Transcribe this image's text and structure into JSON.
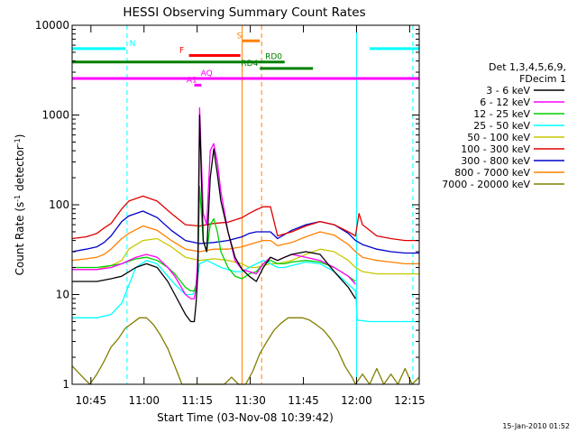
{
  "chart_data": {
    "type": "line",
    "title": "HESSI Observing Summary Count Rates",
    "xlabel": "Start Time (03-Nov-08 10:39:42)",
    "ylabel_main": "Count Rate (s",
    "ylabel_sup1": "-1",
    "ylabel_mid": " detector",
    "ylabel_sup2": "-1",
    "ylabel_end": ")",
    "x_unit": "minutes after 10:39:42",
    "xlim": [
      0,
      98
    ],
    "ylim": [
      1,
      10000
    ],
    "y_scale": "log",
    "x_ticks": [
      {
        "x": 5.3,
        "label": "10:45"
      },
      {
        "x": 20.3,
        "label": "11:00"
      },
      {
        "x": 35.3,
        "label": "11:15"
      },
      {
        "x": 50.3,
        "label": "11:30"
      },
      {
        "x": 65.3,
        "label": "11:45"
      },
      {
        "x": 80.3,
        "label": "12:00"
      },
      {
        "x": 95.3,
        "label": "12:15"
      }
    ],
    "y_ticks": [
      {
        "y": 1,
        "label": "1"
      },
      {
        "y": 10,
        "label": "10"
      },
      {
        "y": 100,
        "label": "100"
      },
      {
        "y": 1000,
        "label": "1000"
      },
      {
        "y": 10000,
        "label": "10000"
      }
    ],
    "legend": {
      "placement": "right",
      "header1": "Det 1,3,4,5,6,9,",
      "header2": "FDecim 1"
    },
    "series": [
      {
        "name": "3 - 6 keV",
        "color": "#000000",
        "x": [
          0,
          4,
          7,
          11,
          14,
          18,
          21,
          24,
          27,
          29,
          32,
          33.5,
          34.5,
          35,
          35.5,
          36,
          37,
          38,
          39,
          40,
          41,
          42,
          44,
          46,
          48,
          50,
          52,
          54,
          56,
          58,
          60,
          62,
          66,
          70,
          74,
          78,
          80
        ],
        "y": [
          14,
          14,
          14,
          15,
          16,
          20,
          22,
          20,
          14,
          10,
          6,
          5,
          5,
          8,
          18,
          1000,
          40,
          30,
          200,
          420,
          220,
          110,
          50,
          26,
          19,
          16,
          14,
          20,
          26,
          24,
          26,
          28,
          30,
          28,
          18,
          12,
          9
        ]
      },
      {
        "name": "6 - 12 keV",
        "color": "#ff00ff",
        "x": [
          0,
          4,
          7,
          11,
          14,
          18,
          21,
          24,
          27,
          29,
          32,
          33.5,
          34.5,
          35,
          35.5,
          36,
          37,
          38,
          39,
          40,
          41,
          42,
          44,
          46,
          48,
          50,
          52,
          54,
          56,
          58,
          60,
          62,
          66,
          70,
          74,
          78,
          80
        ],
        "y": [
          19,
          19,
          19,
          20,
          22,
          26,
          28,
          26,
          20,
          16,
          10,
          9,
          9,
          12,
          28,
          1200,
          80,
          60,
          400,
          480,
          300,
          140,
          50,
          24,
          19,
          18,
          17,
          22,
          26,
          24,
          26,
          28,
          26,
          24,
          20,
          16,
          13
        ]
      },
      {
        "name": "12 - 25 keV",
        "color": "#00d000",
        "x": [
          0,
          4,
          7,
          11,
          14,
          18,
          21,
          24,
          27,
          29,
          32,
          33.5,
          34.5,
          35,
          35.5,
          36,
          37,
          38,
          39,
          40,
          41,
          42,
          44,
          46,
          48,
          50,
          52,
          54,
          56,
          58,
          60,
          62,
          66,
          70,
          74,
          78,
          80
        ],
        "y": [
          20,
          20,
          20,
          21,
          22,
          25,
          26,
          24,
          20,
          17,
          12,
          11,
          11,
          13,
          22,
          160,
          40,
          30,
          60,
          70,
          50,
          30,
          20,
          16,
          15,
          17,
          18,
          22,
          24,
          22,
          22,
          23,
          24,
          23,
          20,
          16,
          14
        ]
      },
      {
        "name": "25 - 50 keV",
        "color": "#00ffff",
        "x": [
          0,
          4,
          7,
          11,
          14,
          18,
          21,
          24,
          27,
          29,
          32,
          34,
          35,
          36,
          38,
          40,
          42,
          44,
          46,
          48,
          50,
          52,
          54,
          56,
          58,
          60,
          62,
          66,
          70,
          74,
          78,
          80,
          80.5,
          84,
          88,
          92,
          96,
          98
        ],
        "y": [
          5.5,
          5.5,
          5.5,
          6,
          8,
          20,
          24,
          22,
          16,
          13,
          10,
          10,
          12,
          22,
          24,
          22,
          20,
          19,
          18,
          18,
          20,
          22,
          24,
          22,
          20,
          20,
          21,
          23,
          22,
          18,
          13,
          11,
          5.2,
          5,
          5,
          5,
          5,
          5
        ]
      },
      {
        "name": "50 - 100 keV",
        "color": "#c8c800",
        "x": [
          0,
          4,
          7,
          11,
          14,
          16,
          20,
          24,
          28,
          32,
          36,
          40,
          44,
          48,
          50,
          52,
          54,
          56,
          58,
          62,
          66,
          70,
          74,
          78,
          80,
          82,
          86,
          90,
          94,
          98
        ],
        "y": [
          19,
          19,
          19,
          21,
          24,
          32,
          40,
          42,
          34,
          26,
          24,
          25,
          24,
          22,
          20,
          20,
          21,
          22,
          22,
          24,
          28,
          32,
          30,
          24,
          20,
          18,
          17,
          17,
          17,
          17
        ]
      },
      {
        "name": "100 - 300 keV",
        "color": "#e00000",
        "x": [
          0,
          4,
          7,
          9,
          11,
          14,
          16,
          20,
          24,
          28,
          32,
          36,
          40,
          44,
          48,
          50,
          52,
          54,
          56,
          58,
          62,
          66,
          70,
          74,
          78,
          80,
          81,
          82,
          86,
          90,
          94,
          98
        ],
        "y": [
          42,
          44,
          48,
          55,
          62,
          90,
          110,
          125,
          110,
          80,
          60,
          58,
          62,
          64,
          72,
          80,
          88,
          95,
          95,
          45,
          50,
          58,
          65,
          60,
          50,
          45,
          80,
          60,
          45,
          42,
          40,
          40
        ]
      },
      {
        "name": "300 - 800 keV",
        "color": "#0000cc",
        "x": [
          0,
          4,
          7,
          9,
          11,
          14,
          16,
          20,
          24,
          28,
          32,
          36,
          40,
          44,
          48,
          50,
          52,
          54,
          56,
          58,
          62,
          66,
          70,
          74,
          78,
          80,
          82,
          86,
          90,
          94,
          98
        ],
        "y": [
          30,
          32,
          34,
          38,
          45,
          65,
          75,
          85,
          72,
          52,
          40,
          37,
          38,
          40,
          44,
          48,
          50,
          50,
          50,
          42,
          52,
          60,
          65,
          60,
          48,
          40,
          36,
          32,
          30,
          29,
          29
        ]
      },
      {
        "name": "800 - 7000 keV",
        "color": "#ff8000",
        "x": [
          0,
          4,
          7,
          9,
          11,
          14,
          16,
          20,
          24,
          28,
          32,
          36,
          40,
          44,
          48,
          50,
          52,
          54,
          56,
          58,
          62,
          66,
          70,
          74,
          78,
          80,
          82,
          86,
          90,
          94,
          98
        ],
        "y": [
          24,
          25,
          26,
          28,
          32,
          42,
          48,
          58,
          52,
          40,
          32,
          30,
          32,
          32,
          34,
          36,
          38,
          40,
          40,
          35,
          38,
          44,
          50,
          46,
          36,
          30,
          26,
          24,
          23,
          22,
          22
        ]
      },
      {
        "name": "7000 - 20000 keV",
        "color": "#808000",
        "x": [
          0,
          3,
          5,
          7,
          9,
          11,
          13,
          15,
          17,
          19,
          21,
          23,
          25,
          27,
          29,
          31,
          33,
          35,
          37,
          39,
          41,
          43,
          45,
          47,
          49,
          51,
          53,
          55,
          57,
          59,
          61,
          63,
          65,
          67,
          69,
          71,
          73,
          75,
          77,
          79,
          80,
          82,
          84,
          86,
          88,
          90,
          92,
          94,
          96,
          98
        ],
        "y": [
          1.6,
          1.2,
          1,
          1.3,
          1.8,
          2.6,
          3.2,
          4.2,
          4.8,
          5.5,
          5.5,
          4.6,
          3.5,
          2.5,
          1.6,
          1,
          1,
          1,
          1,
          1,
          1,
          1,
          1.2,
          1,
          1,
          1.4,
          2.2,
          3,
          4,
          4.8,
          5.5,
          5.5,
          5.5,
          5.2,
          4.6,
          4,
          3.2,
          2.4,
          1.6,
          1.2,
          1,
          1.3,
          1,
          1.5,
          1,
          1.3,
          1,
          1.5,
          1,
          1.2
        ]
      }
    ],
    "overlays": {
      "hlines": [
        {
          "label": "N",
          "color": "#00ffff",
          "y": 5500,
          "segments": [
            [
              0,
              15
            ],
            [
              84,
              98
            ]
          ],
          "label_x": 16.2
        },
        {
          "label": "F",
          "color": "#ff0000",
          "y": 4600,
          "segments": [
            [
              33,
              47.5
            ]
          ],
          "label_x": 30.3
        },
        {
          "label": "S",
          "color": "#ff8000",
          "y": 6700,
          "segments": [
            [
              48,
              53
            ]
          ],
          "label_x": 46.5
        },
        {
          "label": "RD0",
          "color": "#008000",
          "y": 3900,
          "segments": [
            [
              0,
              49
            ],
            [
              49,
              60
            ]
          ],
          "label_x": 54.5
        },
        {
          "label": "RD4",
          "color": "#008000",
          "y": 3300,
          "segments": [
            [
              53,
              68
            ]
          ],
          "label_x": 47.7
        },
        {
          "label": "AQ",
          "color": "#ff00ff",
          "y": 2550,
          "segments": [
            [
              0,
              98
            ]
          ],
          "label_x": 36.3
        },
        {
          "label": "A1",
          "color": "#ff00ff",
          "y": 2150,
          "segments": [
            [
              34.5,
              36.5
            ]
          ],
          "label_x": 32.3
        }
      ],
      "vlines": [
        {
          "color": "#00ffff",
          "x": 15.5,
          "dashed": true
        },
        {
          "color": "#ff8000",
          "x": 48,
          "dashed": false
        },
        {
          "color": "#ff8000",
          "x": 53.5,
          "dashed": true
        },
        {
          "color": "#00ffff",
          "x": 80.3,
          "dashed": false
        },
        {
          "color": "#00ffff",
          "x": 96.2,
          "dashed": true
        }
      ]
    }
  },
  "footer": {
    "timestamp": "15-Jan-2010 01:52"
  }
}
